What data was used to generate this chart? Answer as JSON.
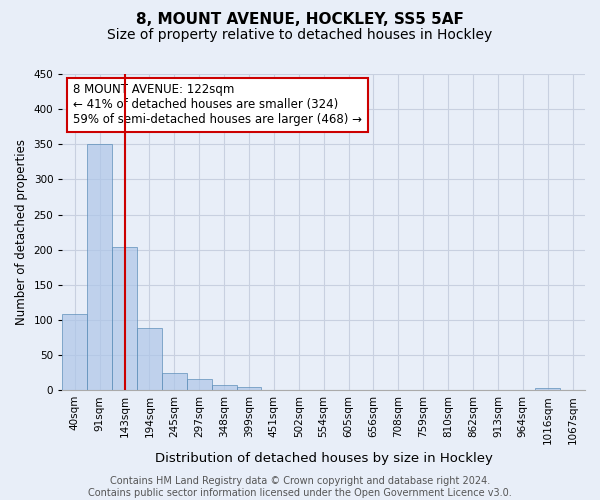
{
  "title": "8, MOUNT AVENUE, HOCKLEY, SS5 5AF",
  "subtitle": "Size of property relative to detached houses in Hockley",
  "xlabel": "Distribution of detached houses by size in Hockley",
  "ylabel": "Number of detached properties",
  "bin_labels": [
    "40sqm",
    "91sqm",
    "143sqm",
    "194sqm",
    "245sqm",
    "297sqm",
    "348sqm",
    "399sqm",
    "451sqm",
    "502sqm",
    "554sqm",
    "605sqm",
    "656sqm",
    "708sqm",
    "759sqm",
    "810sqm",
    "862sqm",
    "913sqm",
    "964sqm",
    "1016sqm",
    "1067sqm"
  ],
  "bar_heights": [
    108,
    350,
    204,
    88,
    24,
    16,
    8,
    5,
    0,
    0,
    0,
    0,
    0,
    0,
    0,
    0,
    0,
    0,
    0,
    3,
    0
  ],
  "bar_color": "#aec6e8",
  "bar_edge_color": "#5b8db8",
  "bar_alpha": 0.7,
  "red_line_x": 2.0,
  "red_line_color": "#cc0000",
  "ylim": [
    0,
    450
  ],
  "yticks": [
    0,
    50,
    100,
    150,
    200,
    250,
    300,
    350,
    400,
    450
  ],
  "annotation_box_text": "8 MOUNT AVENUE: 122sqm\n← 41% of detached houses are smaller (324)\n59% of semi-detached houses are larger (468) →",
  "annotation_box_color": "#cc0000",
  "background_color": "#e8eef8",
  "grid_color": "#c8d0e0",
  "footer_line1": "Contains HM Land Registry data © Crown copyright and database right 2024.",
  "footer_line2": "Contains public sector information licensed under the Open Government Licence v3.0.",
  "title_fontsize": 11,
  "subtitle_fontsize": 10,
  "xlabel_fontsize": 9.5,
  "ylabel_fontsize": 8.5,
  "tick_fontsize": 7.5,
  "annotation_fontsize": 8.5,
  "footer_fontsize": 7
}
